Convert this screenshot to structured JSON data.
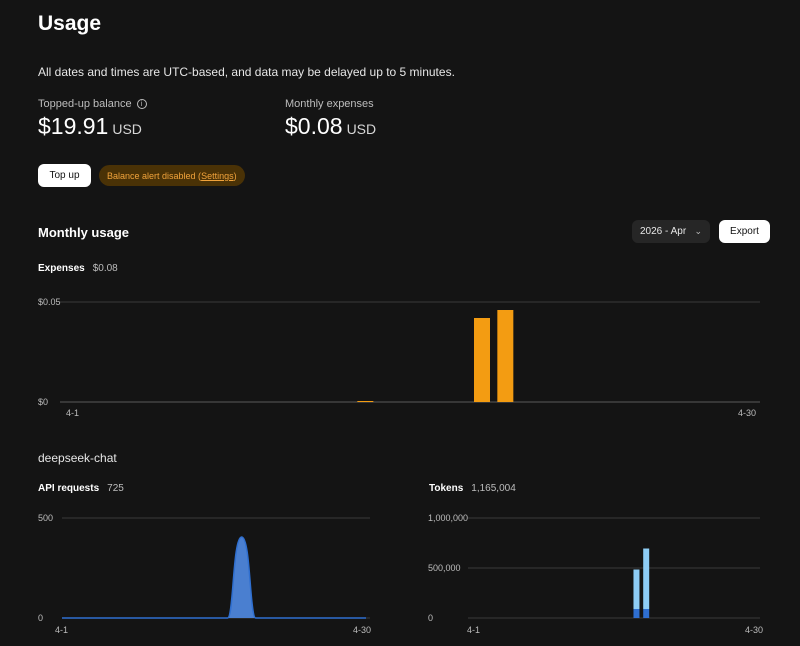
{
  "header": {
    "title": "Usage",
    "notice": "All dates and times are UTC-based, and data may be delayed up to 5 minutes."
  },
  "balance": {
    "label": "Topped-up balance",
    "value": "$19.91",
    "unit": "USD"
  },
  "expenses_summary": {
    "label": "Monthly expenses",
    "value": "$0.08",
    "unit": "USD"
  },
  "actions": {
    "top_up_label": "Top up",
    "alert_text": "Balance alert disabled (",
    "alert_link": "Settings",
    "alert_close": ")"
  },
  "monthly": {
    "title": "Monthly usage",
    "month_selected": "2026 - Apr",
    "export_label": "Export",
    "expenses_label": "Expenses",
    "expenses_value": "$0.08"
  },
  "model": {
    "name": "deepseek-chat",
    "requests_label": "API requests",
    "requests_value": "725",
    "tokens_label": "Tokens",
    "tokens_value": "1,165,004"
  },
  "colors": {
    "expenses_bar": "#f39c12",
    "requests_area": "#4a7fd0",
    "tokens_light": "#8ecdf5",
    "tokens_dark": "#2f6fd0",
    "alert_text": "#f1a33b"
  },
  "chart_data": [
    {
      "type": "bar",
      "name": "expenses",
      "x_start": "4-1",
      "x_end": "4-30",
      "y_ticks": [
        "$0.05",
        "$0"
      ],
      "ylim": [
        0,
        0.05
      ],
      "days": [
        13,
        18,
        19
      ],
      "values": [
        0.0005,
        0.042,
        0.046
      ]
    },
    {
      "type": "area",
      "name": "api_requests",
      "x_start": "4-1",
      "x_end": "4-30",
      "y_ticks": [
        "500",
        "0"
      ],
      "ylim": [
        0,
        500
      ],
      "peak_day": 18,
      "peak_value": 405
    },
    {
      "type": "bar",
      "name": "tokens",
      "x_start": "4-1",
      "x_end": "4-30",
      "y_ticks": [
        "1,000,000",
        "500,000",
        "0"
      ],
      "ylim": [
        0,
        1000000
      ],
      "days": [
        17,
        18
      ],
      "values": [
        485000,
        695000
      ],
      "dark_portion": [
        90000,
        90000
      ]
    }
  ]
}
